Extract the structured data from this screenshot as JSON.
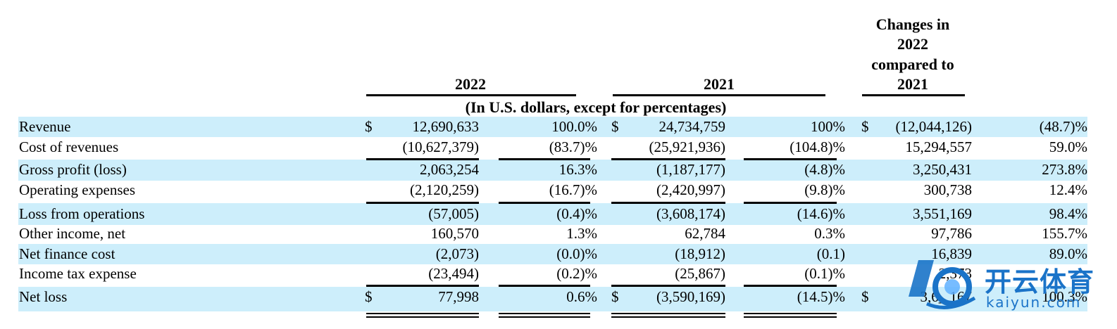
{
  "header": {
    "col_2022": "2022",
    "col_2021": "2021",
    "col_change_lines": [
      "Changes in",
      "2022",
      "compared to",
      "2021"
    ],
    "units": "(In U.S. dollars, except for percentages)"
  },
  "rows": [
    {
      "label": "Revenue",
      "d22": "$",
      "v22": "12,690,633",
      "p22": "100.0%",
      "d21": "$",
      "v21": "24,734,759",
      "p21": "100%",
      "dch": "$",
      "vch": "(12,044,126)",
      "pch": "(48.7)%"
    },
    {
      "label": "Cost of revenues",
      "d22": "",
      "v22": "(10,627,379)",
      "p22": "(83.7)%",
      "d21": "",
      "v21": "(25,921,936)",
      "p21": "(104.8)%",
      "dch": "",
      "vch": "15,294,557",
      "pch": "59.0%"
    },
    {
      "label": "Gross profit (loss)",
      "d22": "",
      "v22": "2,063,254",
      "p22": "16.3%",
      "d21": "",
      "v21": "(1,187,177)",
      "p21": "(4.8)%",
      "dch": "",
      "vch": "3,250,431",
      "pch": "273.8%"
    },
    {
      "label": "Operating expenses",
      "d22": "",
      "v22": "(2,120,259)",
      "p22": "(16.7)%",
      "d21": "",
      "v21": "(2,420,997)",
      "p21": "(9.8)%",
      "dch": "",
      "vch": "300,738",
      "pch": "12.4%"
    },
    {
      "label": "Loss from operations",
      "d22": "",
      "v22": "(57,005)",
      "p22": "(0.4)%",
      "d21": "",
      "v21": "(3,608,174)",
      "p21": "(14.6)%",
      "dch": "",
      "vch": "3,551,169",
      "pch": "98.4%"
    },
    {
      "label": "Other income, net",
      "d22": "",
      "v22": "160,570",
      "p22": "1.3%",
      "d21": "",
      "v21": "62,784",
      "p21": "0.3%",
      "dch": "",
      "vch": "97,786",
      "pch": "155.7%"
    },
    {
      "label": "Net finance cost",
      "d22": "",
      "v22": "(2,073)",
      "p22": "(0.0)%",
      "d21": "",
      "v21": "(18,912)",
      "p21": "(0.1)",
      "dch": "",
      "vch": "16,839",
      "pch": "89.0%"
    },
    {
      "label": "Income tax expense",
      "d22": "",
      "v22": "(23,494)",
      "p22": "(0.2)%",
      "d21": "",
      "v21": "(25,867)",
      "p21": "(0.1)%",
      "dch": "",
      "vch": "2,373",
      "pch": ""
    },
    {
      "label": "Net loss",
      "d22": "$",
      "v22": "77,998",
      "p22": "0.6%",
      "d21": "$",
      "v21": "(3,590,169)",
      "p21": "(14.5)%",
      "dch": "$",
      "vch": "3,6_ 167",
      "pch": "100.3%"
    }
  ],
  "watermark": {
    "brand_cn": "开云体育",
    "brand_en": "kaiyun.com",
    "color": "#1a73c8"
  }
}
